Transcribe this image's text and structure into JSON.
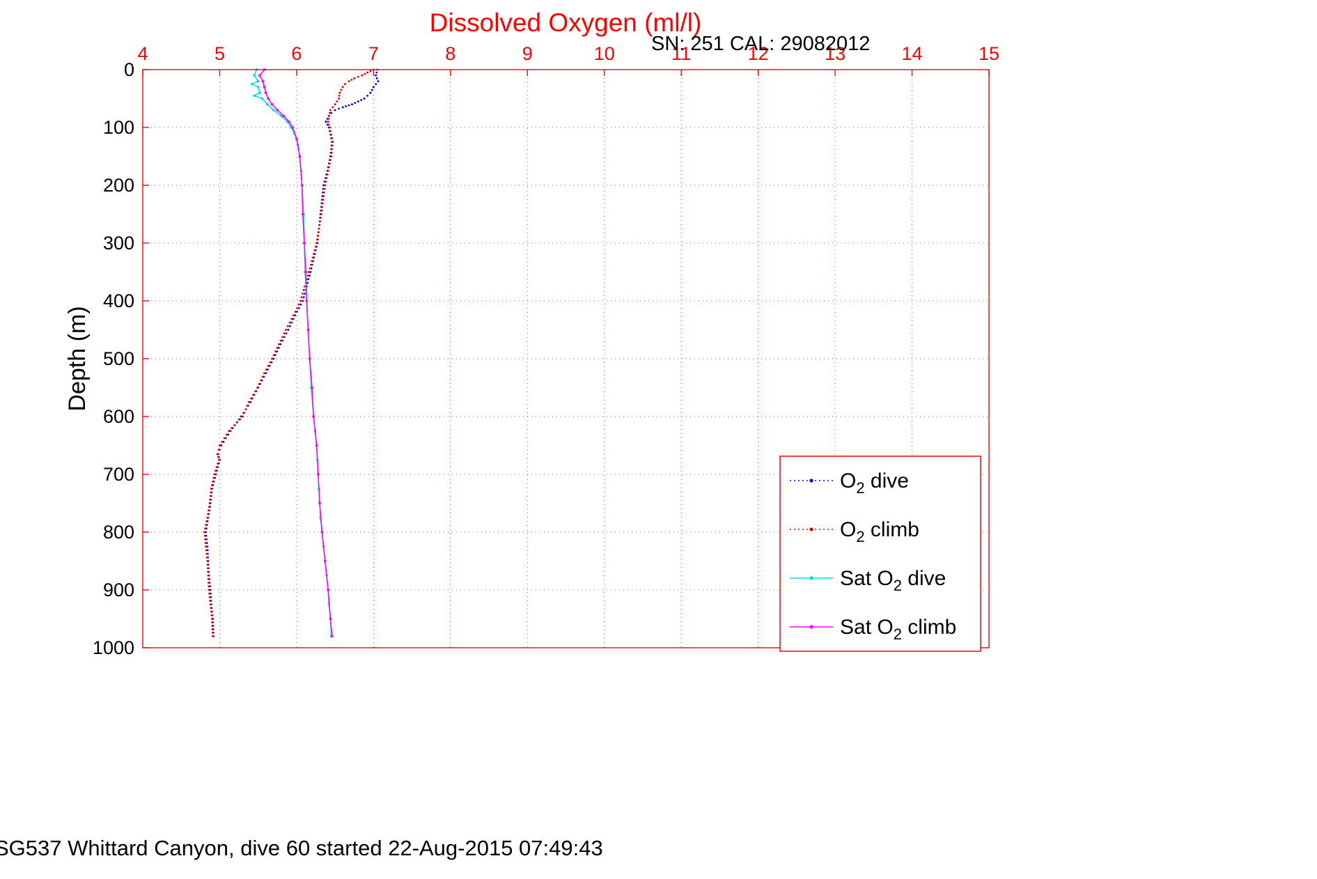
{
  "header": {
    "annotation": "SN: 251  CAL: 29082012"
  },
  "footer": "SG537 Whittard Canyon, dive 60 started 22-Aug-2015 07:49:43",
  "chart_data": {
    "type": "line",
    "title": "Dissolved Oxygen (ml/l)",
    "xlabel": "",
    "ylabel": "Depth (m)",
    "xlim": [
      4,
      15
    ],
    "ylim": [
      0,
      1000
    ],
    "y_axis_inverted": true,
    "grid": true,
    "axis_color": "#ff0000",
    "grid_color": "#ff3333",
    "x_tick_label_color": "#ff0000",
    "y_tick_label_color": "#000000",
    "x_ticks": [
      4,
      5,
      6,
      7,
      8,
      9,
      10,
      11,
      12,
      13,
      14,
      15
    ],
    "y_ticks": [
      0,
      100,
      200,
      300,
      400,
      500,
      600,
      700,
      800,
      900,
      1000
    ],
    "legend": {
      "position": "lower right",
      "entries": [
        {
          "id": "o2-dive",
          "pre": "O",
          "sub": "2",
          "post": " dive"
        },
        {
          "id": "o2-climb",
          "pre": "O",
          "sub": "2",
          "post": " climb"
        },
        {
          "id": "sat-o2-dive",
          "pre": "Sat O",
          "sub": "2",
          "post": " dive"
        },
        {
          "id": "sat-o2-climb",
          "pre": "Sat O",
          "sub": "2",
          "post": " climb"
        }
      ]
    },
    "series": [
      {
        "id": "o2-dive",
        "name": "O2 dive",
        "color": "#0000dd",
        "style": "dotted",
        "depths": [
          0,
          10,
          20,
          30,
          40,
          50,
          55,
          60,
          65,
          70,
          75,
          80,
          90,
          100,
          125,
          150,
          175,
          200,
          250,
          300,
          350,
          400,
          425,
          450,
          475,
          500,
          525,
          550,
          575,
          600,
          625,
          650,
          665,
          675,
          700,
          725,
          750,
          775,
          800,
          825,
          850,
          875,
          900,
          925,
          950,
          980
        ],
        "values": [
          7.05,
          7.03,
          7.06,
          7.0,
          6.96,
          6.88,
          6.8,
          6.72,
          6.6,
          6.5,
          6.45,
          6.42,
          6.38,
          6.42,
          6.46,
          6.44,
          6.4,
          6.35,
          6.31,
          6.27,
          6.18,
          6.08,
          5.98,
          5.89,
          5.79,
          5.7,
          5.6,
          5.5,
          5.4,
          5.28,
          5.14,
          5.02,
          4.98,
          5.0,
          4.95,
          4.9,
          4.88,
          4.85,
          4.82,
          4.84,
          4.85,
          4.86,
          4.88,
          4.89,
          4.91,
          4.92
        ]
      },
      {
        "id": "o2-climb",
        "name": "O2 climb",
        "color": "#e60000",
        "style": "dotted",
        "depths": [
          0,
          5,
          10,
          15,
          20,
          25,
          30,
          40,
          50,
          60,
          70,
          80,
          90,
          100,
          125,
          150,
          175,
          200,
          250,
          300,
          350,
          400,
          425,
          450,
          475,
          500,
          525,
          550,
          575,
          600,
          625,
          650,
          665,
          675,
          700,
          725,
          750,
          775,
          800,
          825,
          850,
          875,
          900,
          925,
          950,
          980
        ],
        "values": [
          7.0,
          6.92,
          6.85,
          6.75,
          6.68,
          6.63,
          6.6,
          6.56,
          6.55,
          6.5,
          6.44,
          6.42,
          6.41,
          6.43,
          6.47,
          6.45,
          6.41,
          6.37,
          6.32,
          6.26,
          6.16,
          6.05,
          5.96,
          5.86,
          5.77,
          5.68,
          5.58,
          5.49,
          5.38,
          5.3,
          5.12,
          5.0,
          4.97,
          4.99,
          4.93,
          4.89,
          4.87,
          4.84,
          4.8,
          4.82,
          4.84,
          4.85,
          4.86,
          4.88,
          4.9,
          4.91
        ]
      },
      {
        "id": "sat-o2-dive",
        "name": "Sat O2 dive",
        "color": "#00e0e0",
        "style": "line-dot",
        "depths": [
          0,
          10,
          20,
          25,
          30,
          40,
          45,
          50,
          60,
          70,
          80,
          90,
          100,
          110,
          120,
          130,
          150,
          175,
          200,
          250,
          300,
          350,
          400,
          450,
          500,
          550,
          600,
          625,
          650,
          675,
          700,
          725,
          750,
          775,
          800,
          825,
          850,
          875,
          900,
          925,
          950,
          980
        ],
        "values": [
          5.48,
          5.45,
          5.5,
          5.42,
          5.5,
          5.52,
          5.45,
          5.55,
          5.62,
          5.7,
          5.8,
          5.88,
          5.93,
          5.97,
          6.0,
          6.02,
          6.04,
          6.06,
          6.07,
          6.09,
          6.1,
          6.11,
          6.13,
          6.15,
          6.17,
          6.19,
          6.22,
          6.24,
          6.26,
          6.27,
          6.28,
          6.29,
          6.3,
          6.31,
          6.33,
          6.35,
          6.37,
          6.39,
          6.41,
          6.42,
          6.44,
          6.45
        ]
      },
      {
        "id": "sat-o2-climb",
        "name": "Sat O2 climb",
        "color": "#ff00ff",
        "style": "line-dot",
        "depths": [
          0,
          10,
          20,
          30,
          40,
          50,
          60,
          70,
          80,
          90,
          100,
          120,
          150,
          200,
          250,
          300,
          350,
          400,
          450,
          500,
          550,
          600,
          650,
          700,
          750,
          800,
          850,
          900,
          950,
          980
        ],
        "values": [
          5.58,
          5.52,
          5.56,
          5.58,
          5.6,
          5.63,
          5.68,
          5.75,
          5.83,
          5.9,
          5.95,
          6.0,
          6.04,
          6.07,
          6.08,
          6.1,
          6.12,
          6.13,
          6.15,
          6.17,
          6.2,
          6.22,
          6.26,
          6.28,
          6.3,
          6.33,
          6.37,
          6.41,
          6.44,
          6.46
        ]
      }
    ]
  }
}
